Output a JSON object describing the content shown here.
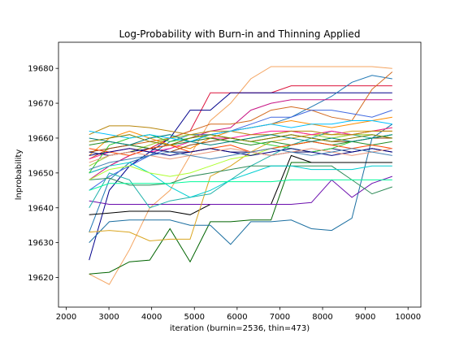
{
  "chart_data": {
    "type": "line",
    "title": "Log-Probability with Burn-in and Thinning Applied",
    "xlabel": "iteration (burnin=2536, thin=473)",
    "ylabel": "lnprobability",
    "xlim": [
      1820,
      10300
    ],
    "ylim": [
      19611.5,
      19687.5
    ],
    "xticks": [
      2000,
      3000,
      4000,
      5000,
      6000,
      7000,
      8000,
      9000,
      10000
    ],
    "yticks": [
      19620,
      19630,
      19640,
      19650,
      19660,
      19670,
      19680
    ],
    "grid": false,
    "legend": "none",
    "x": [
      2536,
      3009,
      3482,
      3955,
      4428,
      4901,
      5374,
      5847,
      6320,
      6793,
      7266,
      7739,
      8212,
      8685,
      9158,
      9631
    ],
    "series": [
      {
        "color": "#f4a460",
        "values": [
          19621,
          19618,
          19628,
          19640,
          19645,
          19655,
          19665,
          19670,
          19677,
          19680.5,
          19680.5,
          19680.5,
          19680.5,
          19680.5,
          19680.5,
          19680
        ]
      },
      {
        "color": "#dc143c",
        "values": [
          19650,
          19652,
          19655,
          19657,
          19660,
          19662,
          19673,
          19673,
          19673,
          19673,
          19675,
          19675,
          19675,
          19675,
          19675,
          19675
        ]
      },
      {
        "color": "#00008b",
        "values": [
          19625,
          19645,
          19652,
          19656,
          19660,
          19668,
          19668,
          19673,
          19673,
          19673,
          19673,
          19673,
          19673,
          19673,
          19673,
          19673
        ]
      },
      {
        "color": "#1f77b4",
        "values": [
          19633,
          19648,
          19653,
          19655,
          19659,
          19661,
          19661,
          19662,
          19663,
          19664,
          19666,
          19669,
          19672,
          19676,
          19678,
          19677
        ]
      },
      {
        "color": "#c71585",
        "values": [
          19648,
          19652,
          19655,
          19657,
          19658,
          19660,
          19662,
          19663,
          19668,
          19670,
          19671,
          19671,
          19671,
          19671,
          19671,
          19671
        ]
      },
      {
        "color": "#d2691e",
        "values": [
          19654,
          19657,
          19658,
          19659,
          19660,
          19662,
          19664,
          19664,
          19665,
          19668,
          19669,
          19668,
          19666,
          19665,
          19674,
          19679
        ]
      },
      {
        "color": "#4169e1",
        "values": [
          19645,
          19649,
          19652,
          19655,
          19657,
          19659,
          19661,
          19662,
          19664,
          19666,
          19666,
          19668,
          19668,
          19667,
          19666,
          19668
        ]
      },
      {
        "color": "#006400",
        "values": [
          19621,
          19621.5,
          19624.5,
          19625,
          19634,
          19624.5,
          19636,
          19636,
          19636.5,
          19636.5,
          19653,
          19653,
          19653,
          19653,
          19653,
          19653
        ]
      },
      {
        "color": "#1a6ea0",
        "values": [
          19630,
          19636,
          19636.5,
          19636.5,
          19636.5,
          19635,
          19635,
          19629.5,
          19636,
          19636,
          19636.5,
          19634,
          19633.5,
          19637,
          19660,
          19664
        ]
      },
      {
        "color": "#000000",
        "values": [
          19638,
          19638.5,
          19639,
          19639,
          19639,
          19638,
          19641,
          19641,
          19641,
          19641,
          19655,
          19653,
          19653,
          19653,
          19653,
          19653
        ]
      },
      {
        "color": "#6a0dad",
        "values": [
          19642,
          19641,
          19641,
          19641,
          19641,
          19641,
          19641,
          19641,
          19641,
          19641,
          19641,
          19641.5,
          19648,
          19643,
          19647,
          19649
        ]
      },
      {
        "color": "#daa520",
        "values": [
          19633,
          19633.5,
          19633,
          19630.5,
          19631,
          19631,
          19649,
          19652,
          19656,
          19659,
          19660,
          19661,
          19661,
          19662,
          19662,
          19662
        ]
      },
      {
        "color": "#20b2aa",
        "values": [
          19640,
          19650,
          19648,
          19640,
          19642,
          19643,
          19644,
          19648,
          19652,
          19655,
          19658,
          19660,
          19662,
          19661,
          19660,
          19661
        ]
      },
      {
        "color": "#2e8b57",
        "values": [
          19648,
          19648.5,
          19646.5,
          19646.5,
          19647,
          19649,
          19650,
          19651,
          19652,
          19652,
          19652,
          19652,
          19652,
          19648,
          19644,
          19646
        ]
      },
      {
        "color": "#00ced1",
        "values": [
          19650,
          19652,
          19653,
          19650,
          19646,
          19643,
          19645,
          19648,
          19650,
          19652,
          19652,
          19651,
          19651,
          19651,
          19652,
          19652
        ]
      },
      {
        "color": "#adff2f",
        "values": [
          19648,
          19651,
          19652,
          19650,
          19649,
          19650,
          19652,
          19654,
          19655,
          19657,
          19658,
          19659,
          19660,
          19661,
          19662,
          19663
        ]
      },
      {
        "color": "#00fa9a",
        "values": [
          19645,
          19647,
          19647,
          19647,
          19647,
          19647.5,
          19647.5,
          19647.5,
          19647.5,
          19647.5,
          19648,
          19648,
          19648,
          19648,
          19648,
          19648
        ]
      },
      {
        "color": "#ff8c00",
        "values": [
          19655,
          19660,
          19662,
          19660,
          19658,
          19657,
          19660,
          19662,
          19663,
          19664,
          19665,
          19664,
          19663,
          19664,
          19665,
          19666
        ]
      },
      {
        "color": "#9acd32",
        "values": [
          19652,
          19655,
          19656,
          19658,
          19660,
          19661,
          19660,
          19659,
          19660,
          19661,
          19662,
          19661,
          19660,
          19661,
          19661,
          19660
        ]
      },
      {
        "color": "#8b4513",
        "values": [
          19656,
          19657,
          19658,
          19657,
          19656,
          19658,
          19659,
          19660,
          19659,
          19660,
          19661,
          19660,
          19659,
          19659,
          19660,
          19660
        ]
      },
      {
        "color": "#ff1493",
        "values": [
          19654,
          19656,
          19657,
          19656,
          19657,
          19659,
          19660,
          19660,
          19661,
          19662,
          19662,
          19661,
          19662,
          19661,
          19662,
          19663
        ]
      },
      {
        "color": "#228b22",
        "values": [
          19658,
          19659,
          19658,
          19657,
          19658,
          19659,
          19660,
          19659,
          19658,
          19659,
          19658,
          19659,
          19658,
          19659,
          19658,
          19659
        ]
      },
      {
        "color": "#191970",
        "values": [
          19656,
          19655,
          19656,
          19657,
          19656,
          19656,
          19657,
          19656,
          19656,
          19655,
          19656,
          19656,
          19657,
          19656,
          19657,
          19656
        ]
      },
      {
        "color": "#b8860b",
        "values": [
          19661,
          19663.5,
          19663.5,
          19663,
          19662,
          19661,
          19662,
          19662,
          19661,
          19661,
          19662,
          19662,
          19661,
          19661,
          19662,
          19662
        ]
      },
      {
        "color": "#32cd32",
        "values": [
          19650,
          19658,
          19660,
          19661,
          19659,
          19660,
          19661,
          19660,
          19659,
          19658,
          19657,
          19656,
          19657,
          19659,
          19660,
          19661
        ]
      },
      {
        "color": "#00bfff",
        "values": [
          19662,
          19661,
          19660,
          19661,
          19660,
          19659,
          19661,
          19662,
          19663,
          19664,
          19663,
          19664,
          19664,
          19665,
          19665,
          19664
        ]
      },
      {
        "color": "#ff4500",
        "values": [
          19657,
          19656,
          19655,
          19657,
          19658,
          19656,
          19657,
          19658,
          19656,
          19657,
          19658,
          19659,
          19658,
          19657,
          19658,
          19657
        ]
      },
      {
        "color": "#008080",
        "values": [
          19660,
          19659,
          19658,
          19660,
          19661,
          19659,
          19658,
          19659,
          19660,
          19661,
          19660,
          19659,
          19660,
          19659,
          19660,
          19661
        ]
      },
      {
        "color": "#808000",
        "values": [
          19659,
          19660,
          19661,
          19659,
          19658,
          19660,
          19661,
          19660,
          19659,
          19660,
          19661,
          19660,
          19659,
          19660,
          19661,
          19660
        ]
      },
      {
        "color": "#000080",
        "values": [
          19655,
          19656,
          19657,
          19656,
          19655,
          19656,
          19657,
          19656,
          19655,
          19656,
          19657,
          19656,
          19655,
          19656,
          19657,
          19656
        ]
      },
      {
        "color": "#e9967a",
        "values": [
          19653,
          19655,
          19656,
          19655,
          19654,
          19655,
          19656,
          19657,
          19656,
          19655,
          19656,
          19657,
          19656,
          19655,
          19656,
          19657
        ]
      },
      {
        "color": "#4682b4",
        "values": [
          19651,
          19653,
          19654,
          19655,
          19656,
          19655,
          19654,
          19655,
          19656,
          19657,
          19656,
          19655,
          19656,
          19657,
          19656,
          19655
        ]
      }
    ]
  }
}
